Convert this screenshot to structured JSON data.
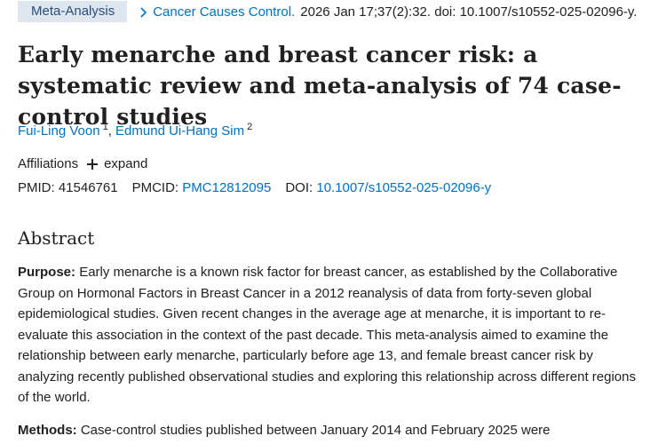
{
  "header": {
    "badge": "Meta-Analysis",
    "journal": "Cancer Causes Control.",
    "citation": "2026 Jan 17;37(2):32. doi: 10.1007/s10552-025-02096-y."
  },
  "title": "Early menarche and breast cancer risk: a systematic review and meta-analysis of 74 case-control studies",
  "authors": [
    {
      "name": "Fui-Ling Voon",
      "sup": "1"
    },
    {
      "name": "Edmund Ui-Hang Sim",
      "sup": "2"
    }
  ],
  "affiliations": {
    "label": "Affiliations",
    "expand_label": "expand"
  },
  "ids": {
    "pmid_label": "PMID:",
    "pmid": "41546761",
    "pmcid_label": "PMCID:",
    "pmcid": "PMC12812095",
    "doi_label": "DOI:",
    "doi": "10.1007/s10552-025-02096-y"
  },
  "abstract": {
    "heading": "Abstract",
    "purpose_label": "Purpose:",
    "purpose_text": "Early menarche is a known risk factor for breast cancer, as established by the Collaborative Group on Hormonal Factors in Breast Cancer in a 2012 reanalysis of data from forty-seven global epidemiological studies. Given recent changes in the average age at menarche, it is important to re-evaluate this association in the context of the past decade. This meta-analysis aimed to examine the relationship between early menarche, particularly before age 13, and female breast cancer risk by analyzing recently published observational studies and exploring this relationship across different regions of the world.",
    "methods_label": "Methods:",
    "methods_text": "Case-control studies published between January 2014 and February 2025 were"
  },
  "colors": {
    "link": "#0071bc",
    "badge_bg": "#dee6ef",
    "text": "#212121"
  }
}
